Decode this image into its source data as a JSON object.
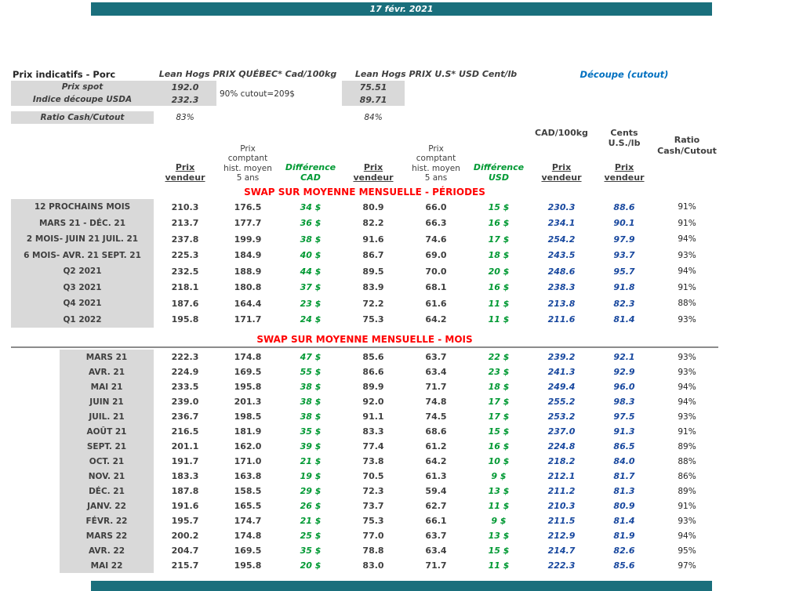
{
  "banner": {
    "date": "17 févr. 2021"
  },
  "colors": {
    "banner_teal": "#1a6f7c",
    "label_gray": "#d9d9d9",
    "difference_green": "#009933",
    "cutout_blue_header": "#0070c0",
    "cutout_blue_values": "#17479e",
    "section_red": "#ff0000"
  },
  "summary": {
    "title": "Prix indicatifs - Porc",
    "quebec_header": "Lean Hogs PRIX QUÉBEC* Cad/100kg",
    "us_header": "Lean Hogs PRIX U.S* USD Cent/lb",
    "cutout_header": "Découpe (cutout)",
    "cutout_note": "90% cutout=209$",
    "rows": [
      {
        "label": "Prix spot",
        "quebec": "192.0",
        "us": "75.51"
      },
      {
        "label": "Indice découpe USDA",
        "quebec": "232.3",
        "us": "89.71"
      },
      {
        "label": "Ratio Cash/Cutout",
        "quebec": "83%",
        "us": "84%"
      }
    ]
  },
  "columns": {
    "prix_vendeur": "Prix\nvendeur",
    "prix_comptant": "Prix\ncomptant\nhist. moyen\n5 ans",
    "difference_cad": "Différence\nCAD",
    "difference_usd": "Différence\nUSD",
    "cad_unit": "CAD/100kg",
    "us_unit": "Cents\nU.S./lb",
    "ratio_unit": "Ratio\nCash/Cutout"
  },
  "sections": [
    {
      "title": "SWAP SUR MOYENNE MENSUELLE - PÉRIODES",
      "rows": [
        [
          "12 PROCHAINS MOIS",
          "210.3",
          "176.5",
          "34 $",
          "80.9",
          "66.0",
          "15 $",
          "230.3",
          "88.6",
          "91%"
        ],
        [
          "MARS 21 -  DÉC. 21",
          "213.7",
          "177.7",
          "36 $",
          "82.2",
          "66.3",
          "16 $",
          "234.1",
          "90.1",
          "91%"
        ],
        [
          "2 MOIS- JUIN 21 JUIL. 21",
          "237.8",
          "199.9",
          "38 $",
          "91.6",
          "74.6",
          "17 $",
          "254.2",
          "97.9",
          "94%"
        ],
        [
          "6 MOIS- AVR. 21 SEPT. 21",
          "225.3",
          "184.9",
          "40 $",
          "86.7",
          "69.0",
          "18 $",
          "243.5",
          "93.7",
          "93%"
        ],
        [
          "Q2 2021",
          "232.5",
          "188.9",
          "44 $",
          "89.5",
          "70.0",
          "20 $",
          "248.6",
          "95.7",
          "94%"
        ],
        [
          "Q3 2021",
          "218.1",
          "180.8",
          "37 $",
          "83.9",
          "68.1",
          "16 $",
          "238.3",
          "91.8",
          "91%"
        ],
        [
          "Q4 2021",
          "187.6",
          "164.4",
          "23 $",
          "72.2",
          "61.6",
          "11 $",
          "213.8",
          "82.3",
          "88%"
        ],
        [
          "Q1 2022",
          "195.8",
          "171.7",
          "24 $",
          "75.3",
          "64.2",
          "11 $",
          "211.6",
          "81.4",
          "93%"
        ]
      ]
    },
    {
      "title": "SWAP SUR MOYENNE MENSUELLE - MOIS",
      "rows": [
        [
          "MARS 21",
          "222.3",
          "174.8",
          "47 $",
          "85.6",
          "63.7",
          "22 $",
          "239.2",
          "92.1",
          "93%"
        ],
        [
          "AVR. 21",
          "224.9",
          "169.5",
          "55 $",
          "86.6",
          "63.4",
          "23 $",
          "241.3",
          "92.9",
          "93%"
        ],
        [
          "MAI 21",
          "233.5",
          "195.8",
          "38 $",
          "89.9",
          "71.7",
          "18 $",
          "249.4",
          "96.0",
          "94%"
        ],
        [
          "JUIN 21",
          "239.0",
          "201.3",
          "38 $",
          "92.0",
          "74.8",
          "17 $",
          "255.2",
          "98.3",
          "94%"
        ],
        [
          "JUIL. 21",
          "236.7",
          "198.5",
          "38 $",
          "91.1",
          "74.5",
          "17 $",
          "253.2",
          "97.5",
          "93%"
        ],
        [
          "AOÛT 21",
          "216.5",
          "181.9",
          "35 $",
          "83.3",
          "68.6",
          "15 $",
          "237.0",
          "91.3",
          "91%"
        ],
        [
          "SEPT. 21",
          "201.1",
          "162.0",
          "39 $",
          "77.4",
          "61.2",
          "16 $",
          "224.8",
          "86.5",
          "89%"
        ],
        [
          "OCT. 21",
          "191.7",
          "171.0",
          "21 $",
          "73.8",
          "64.2",
          "10 $",
          "218.2",
          "84.0",
          "88%"
        ],
        [
          "NOV. 21",
          "183.3",
          "163.8",
          "19 $",
          "70.5",
          "61.3",
          "9 $",
          "212.1",
          "81.7",
          "86%"
        ],
        [
          "DÉC. 21",
          "187.8",
          "158.5",
          "29 $",
          "72.3",
          "59.4",
          "13 $",
          "211.2",
          "81.3",
          "89%"
        ],
        [
          "JANV. 22",
          "191.6",
          "165.5",
          "26 $",
          "73.7",
          "62.7",
          "11 $",
          "210.3",
          "80.9",
          "91%"
        ],
        [
          "FÉVR. 22",
          "195.7",
          "174.7",
          "21 $",
          "75.3",
          "66.1",
          "9 $",
          "211.5",
          "81.4",
          "93%"
        ],
        [
          "MARS 22",
          "200.2",
          "174.8",
          "25 $",
          "77.0",
          "63.7",
          "13 $",
          "212.9",
          "81.9",
          "94%"
        ],
        [
          "AVR. 22",
          "204.7",
          "169.5",
          "35 $",
          "78.8",
          "63.4",
          "15 $",
          "214.7",
          "82.6",
          "95%"
        ],
        [
          "MAI 22",
          "215.7",
          "195.8",
          "20 $",
          "83.0",
          "71.7",
          "11 $",
          "222.3",
          "85.6",
          "97%"
        ]
      ]
    }
  ]
}
